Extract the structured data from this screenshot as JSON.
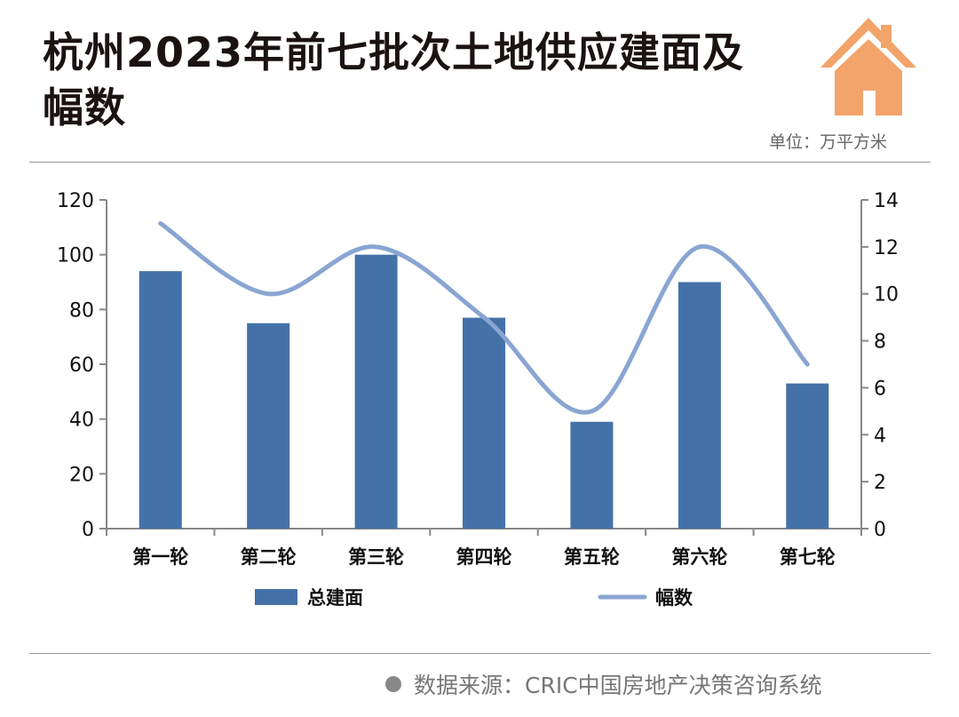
{
  "header": {
    "title": "杭州2023年前七批次土地供应建面及幅数",
    "unit": "单位：万平方米"
  },
  "footer": {
    "source": "数据来源：CRIC中国房地产决策咨询系统"
  },
  "colors": {
    "bar": "#4472a8",
    "line": "#8aa5d2",
    "house": "#f2a46a"
  },
  "chart_data": {
    "type": "bar",
    "title": "杭州2023年前七批次土地供应建面及幅数",
    "categories": [
      "第一轮",
      "第二轮",
      "第三轮",
      "第四轮",
      "第五轮",
      "第六轮",
      "第七轮"
    ],
    "series": [
      {
        "name": "总建面",
        "type": "bar",
        "axis": "left",
        "values": [
          94,
          75,
          100,
          77,
          39,
          90,
          53
        ]
      },
      {
        "name": "幅数",
        "type": "line",
        "axis": "right",
        "smooth": true,
        "values": [
          13,
          10,
          12,
          9,
          5,
          12,
          7
        ]
      }
    ],
    "ylim": [
      0,
      120
    ],
    "yticks": [
      0,
      20,
      40,
      60,
      80,
      100,
      120
    ],
    "y2lim": [
      0,
      14
    ],
    "y2ticks": [
      0,
      2,
      4,
      6,
      8,
      10,
      12,
      14
    ],
    "legend_position": "bottom",
    "grid": false
  }
}
